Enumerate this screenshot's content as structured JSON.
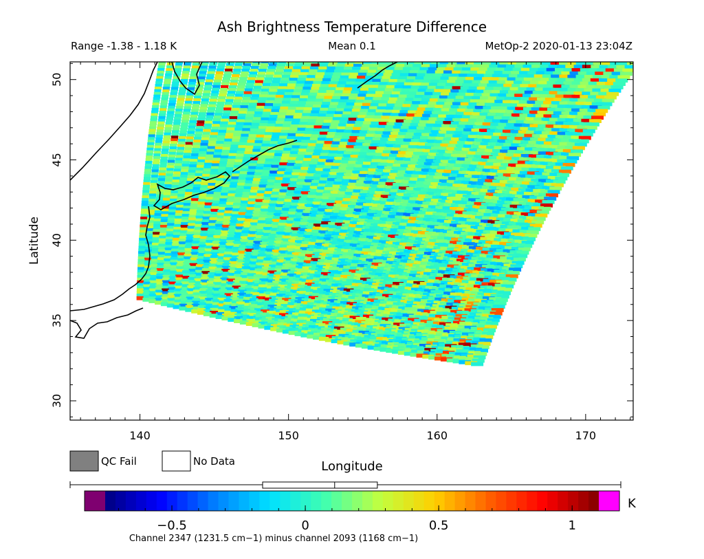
{
  "chart_data": {
    "type": "heatmap",
    "title": "Ash Brightness Temperature Difference",
    "info": {
      "range": "Range -1.38 - 1.18 K",
      "mean": "Mean 0.1",
      "satellite_time": "MetOp-2 2020-01-13 23:04Z"
    },
    "xlabel": "Longitude",
    "ylabel": "Latitude",
    "xlim": [
      135.3,
      173.2
    ],
    "ylim": [
      28.8,
      51.1
    ],
    "xticks": [
      140,
      150,
      160,
      170
    ],
    "yticks": [
      30,
      35,
      40,
      45,
      50
    ],
    "grid": false,
    "swath": {
      "top_left_lon": 141.5,
      "top_lat": 51.1,
      "top_right_lon": 173.2,
      "top_right_lat": 51.0,
      "bottom_left_lon": 140.0,
      "bottom_left_lat": 36.4,
      "bottom_right_lon": 162.7,
      "bottom_right_lat": 32.3
    },
    "colorbar": {
      "label_unit": "K",
      "range": [
        -0.75,
        1.1
      ],
      "ticks": [
        -0.5,
        0,
        0.5,
        1
      ],
      "tick_labels": [
        "−0.5",
        "0",
        "0.5",
        "1"
      ],
      "underflow_color": "#7f0070",
      "overflow_color": "#ff00ff",
      "colors": [
        "#00007f",
        "#0000ff",
        "#007fff",
        "#00e0ff",
        "#40ffb0",
        "#c0ff40",
        "#ffd000",
        "#ff6000",
        "#ff0000",
        "#800000"
      ],
      "boxplot": {
        "min": -0.16,
        "q1": -0.16,
        "median": 0.11,
        "q3": 0.27,
        "max": 0.27
      },
      "caption": "Channel 2347 (1231.5 cm−1) minus channel 2093 (1168 cm−1)"
    },
    "legend": [
      {
        "label": "QC Fail",
        "color": "#808080"
      },
      {
        "label": "No Data",
        "color": "#ffffff"
      }
    ]
  }
}
